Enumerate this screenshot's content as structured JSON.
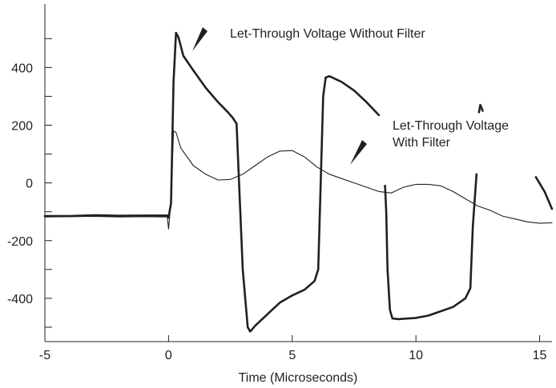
{
  "chart_data": {
    "type": "line",
    "title": "",
    "xlabel": "Time (Microseconds)",
    "ylabel": "",
    "xlim": [
      -5,
      15.5
    ],
    "ylim": [
      -550,
      620
    ],
    "x_ticks": [
      -5,
      0,
      5,
      10,
      15
    ],
    "x_tick_labels": [
      "-5",
      "0",
      "5",
      "10",
      "15"
    ],
    "y_ticks": [
      400,
      200,
      0,
      -200,
      -400
    ],
    "y_tick_labels": [
      "400",
      "200",
      "0",
      "-200",
      "-400"
    ],
    "y_minor_ticks": [
      500,
      300,
      100,
      -100,
      -300,
      -500
    ],
    "grid": false,
    "annotations": [
      {
        "text": "Let-Through Voltage Without Filter",
        "x": 0.9,
        "y": 425
      },
      {
        "text": "Let-Through Voltage",
        "x": 7.3,
        "y": 28
      },
      {
        "text": "With Filter",
        "x": 7.3,
        "y": 28
      }
    ],
    "series": [
      {
        "id": "without_filter",
        "stroke": "#231f20",
        "width": 2.6,
        "segments": [
          [
            [
              -5,
              -115
            ],
            [
              -4,
              -115
            ],
            [
              -3,
              -112
            ],
            [
              -2,
              -114
            ],
            [
              -1,
              -113
            ],
            [
              -0.05,
              -113
            ],
            [
              0,
              -120
            ],
            [
              0.1,
              -70
            ],
            [
              0.2,
              350
            ],
            [
              0.3,
              520
            ],
            [
              0.4,
              505
            ],
            [
              0.6,
              440
            ],
            [
              1,
              390
            ],
            [
              1.5,
              330
            ],
            [
              2,
              280
            ],
            [
              2.4,
              245
            ],
            [
              2.6,
              225
            ],
            [
              2.75,
              205
            ],
            [
              2.85,
              0
            ],
            [
              3,
              -300
            ],
            [
              3.2,
              -500
            ],
            [
              3.3,
              -515
            ],
            [
              3.5,
              -495
            ],
            [
              4,
              -455
            ],
            [
              4.5,
              -415
            ],
            [
              5,
              -390
            ],
            [
              5.5,
              -370
            ],
            [
              5.9,
              -340
            ],
            [
              6.05,
              -300
            ],
            [
              6.15,
              0
            ],
            [
              6.25,
              300
            ],
            [
              6.35,
              365
            ],
            [
              6.5,
              370
            ],
            [
              7,
              350
            ],
            [
              7.5,
              320
            ],
            [
              8,
              280
            ],
            [
              8.5,
              235
            ]
          ],
          [
            [
              8.75,
              -10
            ],
            [
              8.8,
              -100
            ],
            [
              8.85,
              -300
            ],
            [
              8.95,
              -440
            ],
            [
              9.05,
              -470
            ],
            [
              9.3,
              -472
            ],
            [
              10,
              -468
            ],
            [
              10.5,
              -460
            ],
            [
              11,
              -445
            ],
            [
              11.5,
              -430
            ],
            [
              12,
              -400
            ],
            [
              12.2,
              -365
            ],
            [
              12.3,
              -150
            ],
            [
              12.45,
              30
            ]
          ],
          [
            [
              12.55,
              245
            ],
            [
              12.6,
              270
            ],
            [
              12.7,
              250
            ]
          ],
          [
            [
              14.85,
              20
            ],
            [
              15.2,
              -30
            ],
            [
              15.5,
              -90
            ]
          ]
        ]
      },
      {
        "id": "with_filter",
        "stroke": "#231f20",
        "width": 1.1,
        "segments": [
          [
            [
              -5,
              -118
            ],
            [
              -4,
              -117
            ],
            [
              -3,
              -116
            ],
            [
              -2,
              -118
            ],
            [
              -1,
              -117
            ],
            [
              -0.05,
              -118
            ],
            [
              0,
              -160
            ],
            [
              0.1,
              -60
            ],
            [
              0.2,
              180
            ],
            [
              0.3,
              175
            ],
            [
              0.5,
              120
            ],
            [
              1,
              60
            ],
            [
              1.5,
              30
            ],
            [
              2,
              10
            ],
            [
              2.5,
              12
            ],
            [
              3,
              30
            ],
            [
              3.5,
              60
            ],
            [
              4,
              90
            ],
            [
              4.5,
              110
            ],
            [
              5,
              112
            ],
            [
              5.5,
              90
            ],
            [
              6,
              55
            ],
            [
              6.5,
              30
            ],
            [
              7,
              15
            ],
            [
              7.5,
              0
            ],
            [
              8,
              -15
            ],
            [
              8.5,
              -30
            ],
            [
              9,
              -35
            ],
            [
              9.5,
              -15
            ],
            [
              10,
              -5
            ],
            [
              10.5,
              -5
            ],
            [
              11,
              -10
            ],
            [
              11.5,
              -30
            ],
            [
              12,
              -55
            ],
            [
              12.5,
              -80
            ],
            [
              13,
              -95
            ],
            [
              13.5,
              -115
            ],
            [
              14,
              -125
            ],
            [
              14.5,
              -135
            ],
            [
              15,
              -140
            ],
            [
              15.5,
              -138
            ]
          ]
        ]
      }
    ]
  }
}
